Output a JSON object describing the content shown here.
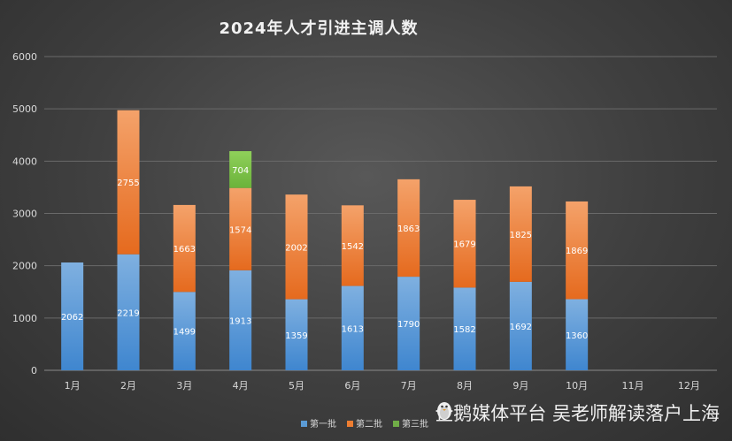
{
  "chart_data": {
    "type": "bar",
    "stacked": true,
    "title": "2024年人才引进主调人数",
    "categories": [
      "1月",
      "2月",
      "3月",
      "4月",
      "5月",
      "6月",
      "7月",
      "8月",
      "9月",
      "10月",
      "11月",
      "12月"
    ],
    "series": [
      {
        "name": "第一批",
        "color": "#5b9bd5",
        "values": [
          2062,
          2219,
          1499,
          1913,
          1359,
          1613,
          1790,
          1582,
          1692,
          1360,
          null,
          null
        ]
      },
      {
        "name": "第二批",
        "color": "#ed7d31",
        "values": [
          null,
          2755,
          1663,
          1574,
          2002,
          1542,
          1863,
          1679,
          1825,
          1869,
          null,
          null
        ]
      },
      {
        "name": "第三批",
        "color": "#70ad47",
        "values": [
          null,
          null,
          null,
          704,
          null,
          null,
          null,
          null,
          null,
          null,
          null,
          null
        ]
      }
    ],
    "ylim": [
      0,
      6000
    ],
    "yticks": [
      0,
      1000,
      2000,
      3000,
      4000,
      5000,
      6000
    ],
    "grid": true,
    "legend": "bottom"
  },
  "watermark": {
    "text": "企鹅媒体平台 吴老师解读落户上海",
    "icon": "penguin-icon"
  }
}
